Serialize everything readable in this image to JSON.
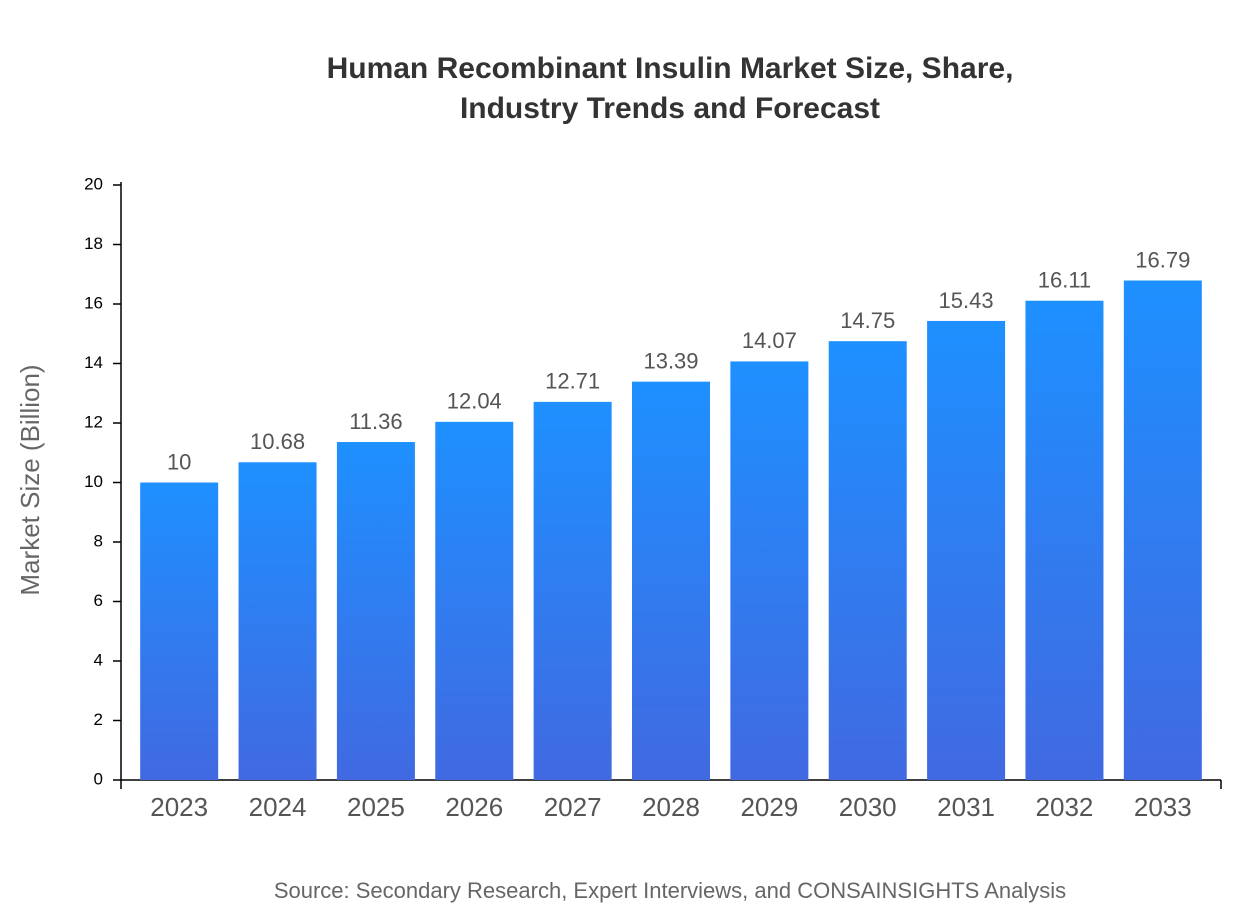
{
  "chart_data": {
    "type": "bar",
    "title": [
      "Human Recombinant Insulin Market Size, Share,",
      "Industry Trends and Forecast"
    ],
    "y_label": "Market Size (Billion)",
    "source": "Source: Secondary Research, Expert Interviews, and CONSAINSIGHTS Analysis",
    "categories": [
      "2023",
      "2024",
      "2025",
      "2026",
      "2027",
      "2028",
      "2029",
      "2030",
      "2031",
      "2032",
      "2033"
    ],
    "values": [
      10,
      10.68,
      11.36,
      12.04,
      12.71,
      13.39,
      14.07,
      14.75,
      15.43,
      16.11,
      16.79
    ],
    "gradient": [
      "#1e90ff",
      "#4169e1"
    ],
    "ylim": [
      0,
      20
    ],
    "yticks": [
      0,
      2,
      4,
      6,
      8,
      10,
      12,
      14,
      16,
      18,
      20
    ]
  }
}
